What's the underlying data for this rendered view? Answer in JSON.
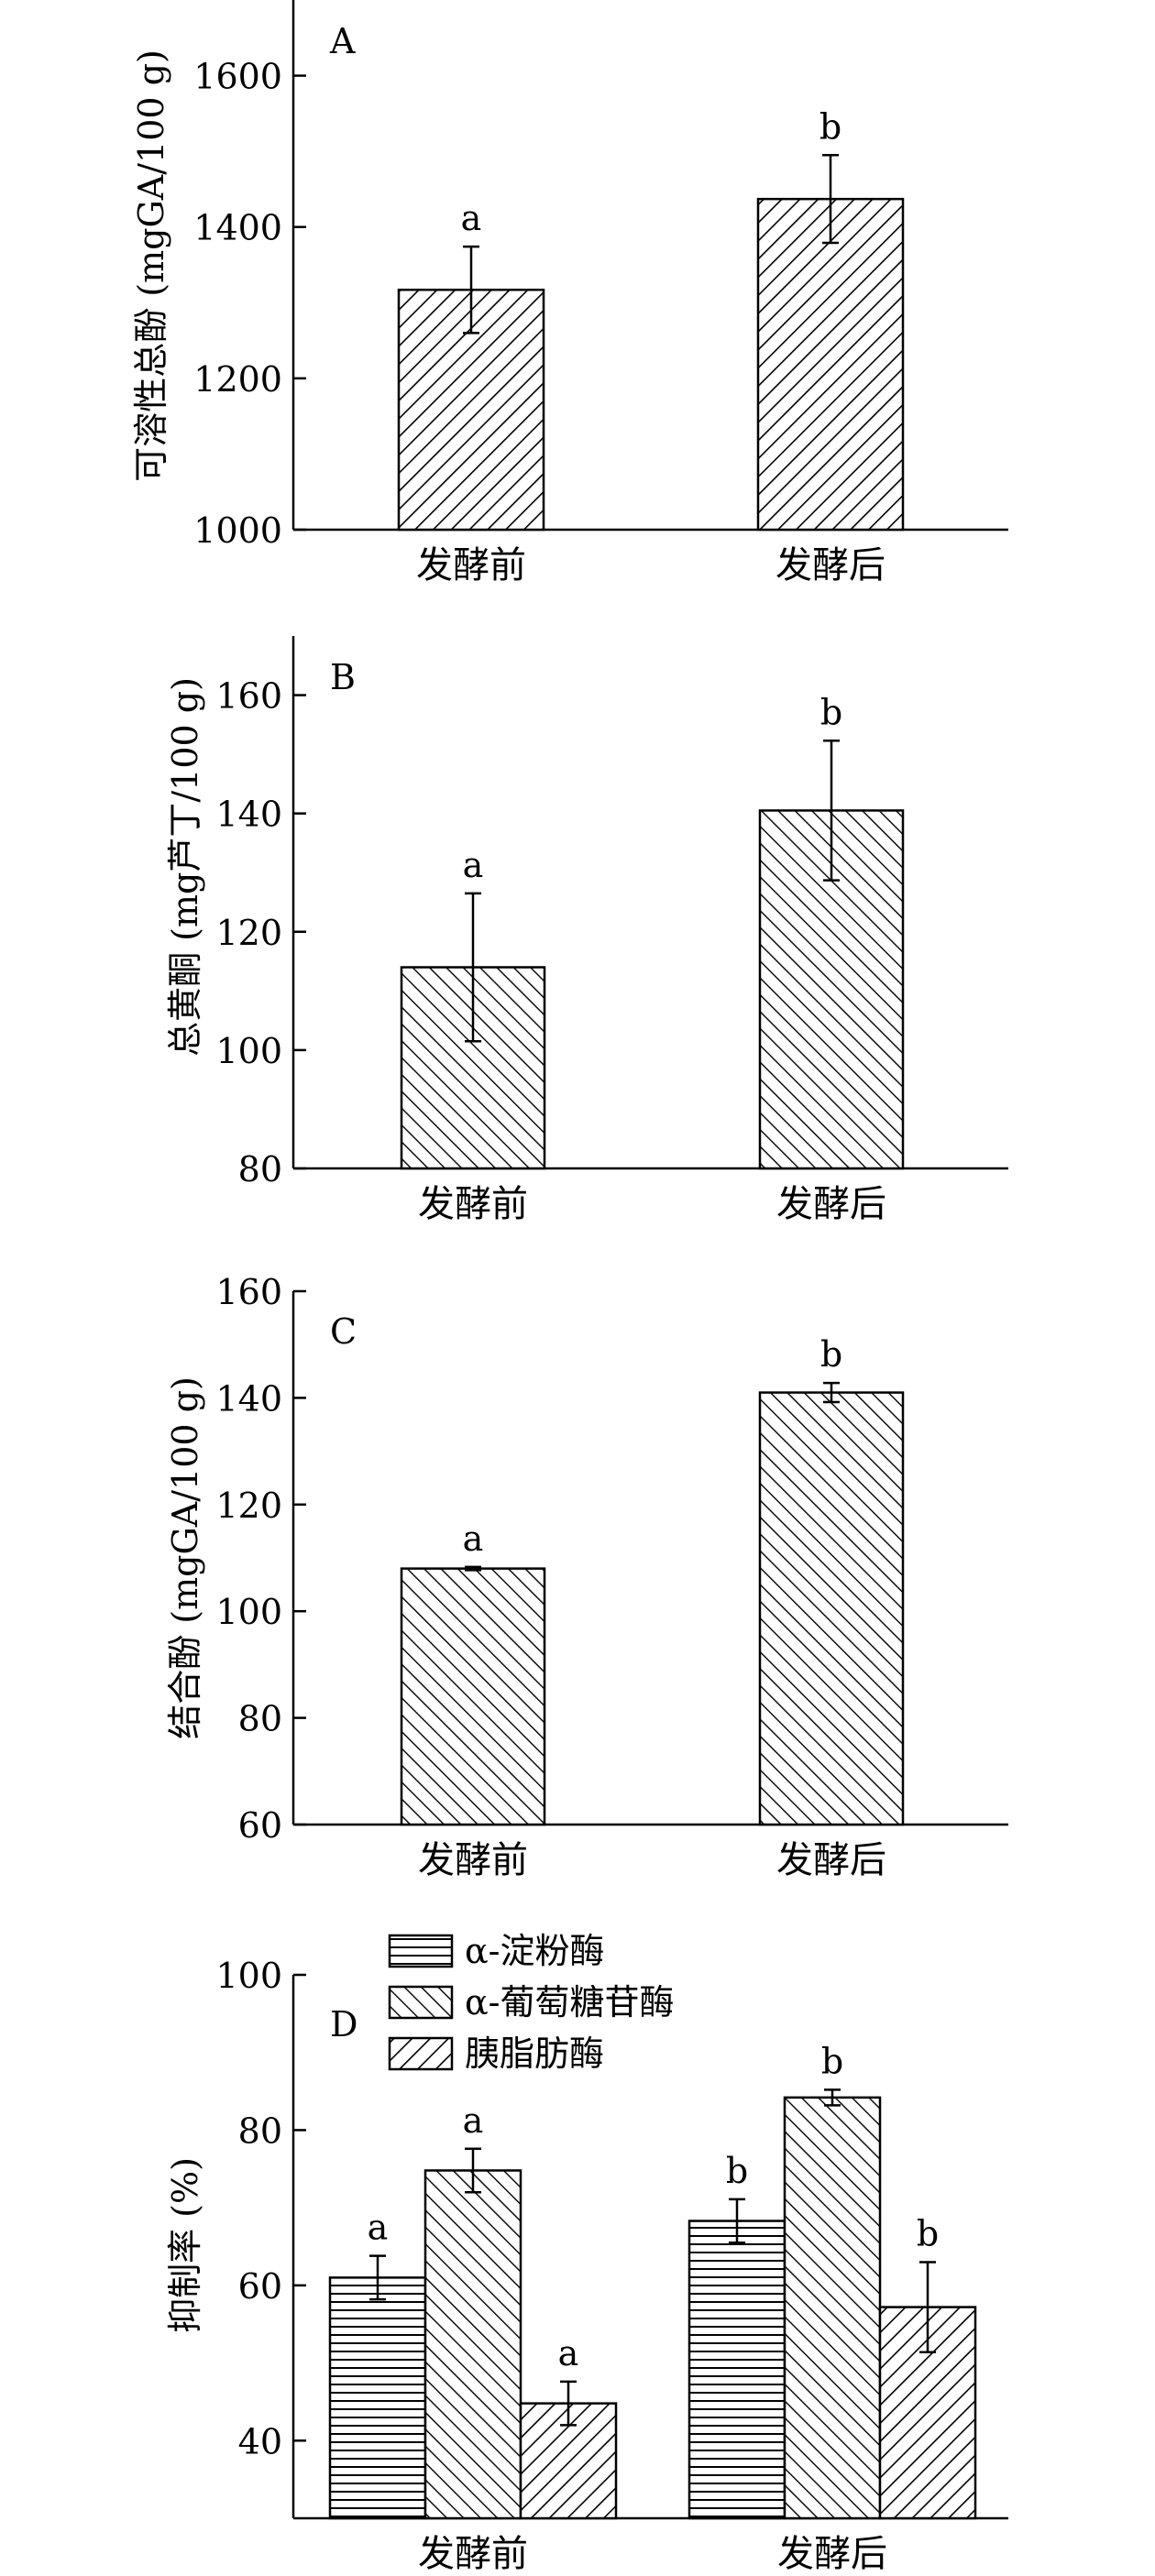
{
  "chart_data": [
    {
      "type": "bar",
      "panel_label": "A",
      "ylabel": "可溶性总酚 (mgGA/100 g)",
      "categories": [
        "发酵前",
        "发酵后"
      ],
      "series": [
        {
          "values": [
            1317,
            1437
          ],
          "errors": [
            57,
            58
          ],
          "letters": [
            "a",
            "b"
          ],
          "pattern": "back"
        }
      ],
      "ylim": [
        1000,
        1700
      ],
      "yticks": [
        1000,
        1200,
        1400,
        1600
      ],
      "grid": false
    },
    {
      "type": "bar",
      "panel_label": "B",
      "ylabel": "总黄酮 (mg芦丁/100 g)",
      "categories": [
        "发酵前",
        "发酵后"
      ],
      "series": [
        {
          "values": [
            114,
            140.5
          ],
          "errors": [
            12.5,
            11.8
          ],
          "letters": [
            "a",
            "b"
          ],
          "pattern": "fwd"
        }
      ],
      "ylim": [
        80,
        170
      ],
      "yticks": [
        80,
        100,
        120,
        140,
        160
      ],
      "grid": false
    },
    {
      "type": "bar",
      "panel_label": "C",
      "ylabel": "结合酚 (mgGA/100 g)",
      "categories": [
        "发酵前",
        "发酵后"
      ],
      "series": [
        {
          "values": [
            108,
            141
          ],
          "errors": [
            0.3,
            1.8
          ],
          "letters": [
            "a",
            "b"
          ],
          "pattern": "fwd"
        }
      ],
      "ylim": [
        60,
        160
      ],
      "yticks": [
        60,
        80,
        100,
        120,
        140,
        160
      ],
      "grid": false
    },
    {
      "type": "bar",
      "panel_label": "D",
      "ylabel": "抑制率 (%)",
      "categories": [
        "发酵前",
        "发酵后"
      ],
      "series": [
        {
          "name": "α-淀粉酶",
          "values": [
            61,
            68.3
          ],
          "errors": [
            2.8,
            2.8
          ],
          "letters": [
            "a",
            "b"
          ],
          "pattern": "horiz"
        },
        {
          "name": "α-葡萄糖苷酶",
          "values": [
            74.8,
            84.2
          ],
          "errors": [
            2.8,
            1
          ],
          "letters": [
            "a",
            "b"
          ],
          "pattern": "fwd"
        },
        {
          "name": "胰脂肪酶",
          "values": [
            44.8,
            57.2
          ],
          "errors": [
            2.8,
            5.8
          ],
          "letters": [
            "a",
            "b"
          ],
          "pattern": "back"
        }
      ],
      "ylim": [
        30,
        100
      ],
      "yticks": [
        40,
        60,
        80,
        100
      ],
      "legend": "top-left",
      "grid": false
    }
  ]
}
